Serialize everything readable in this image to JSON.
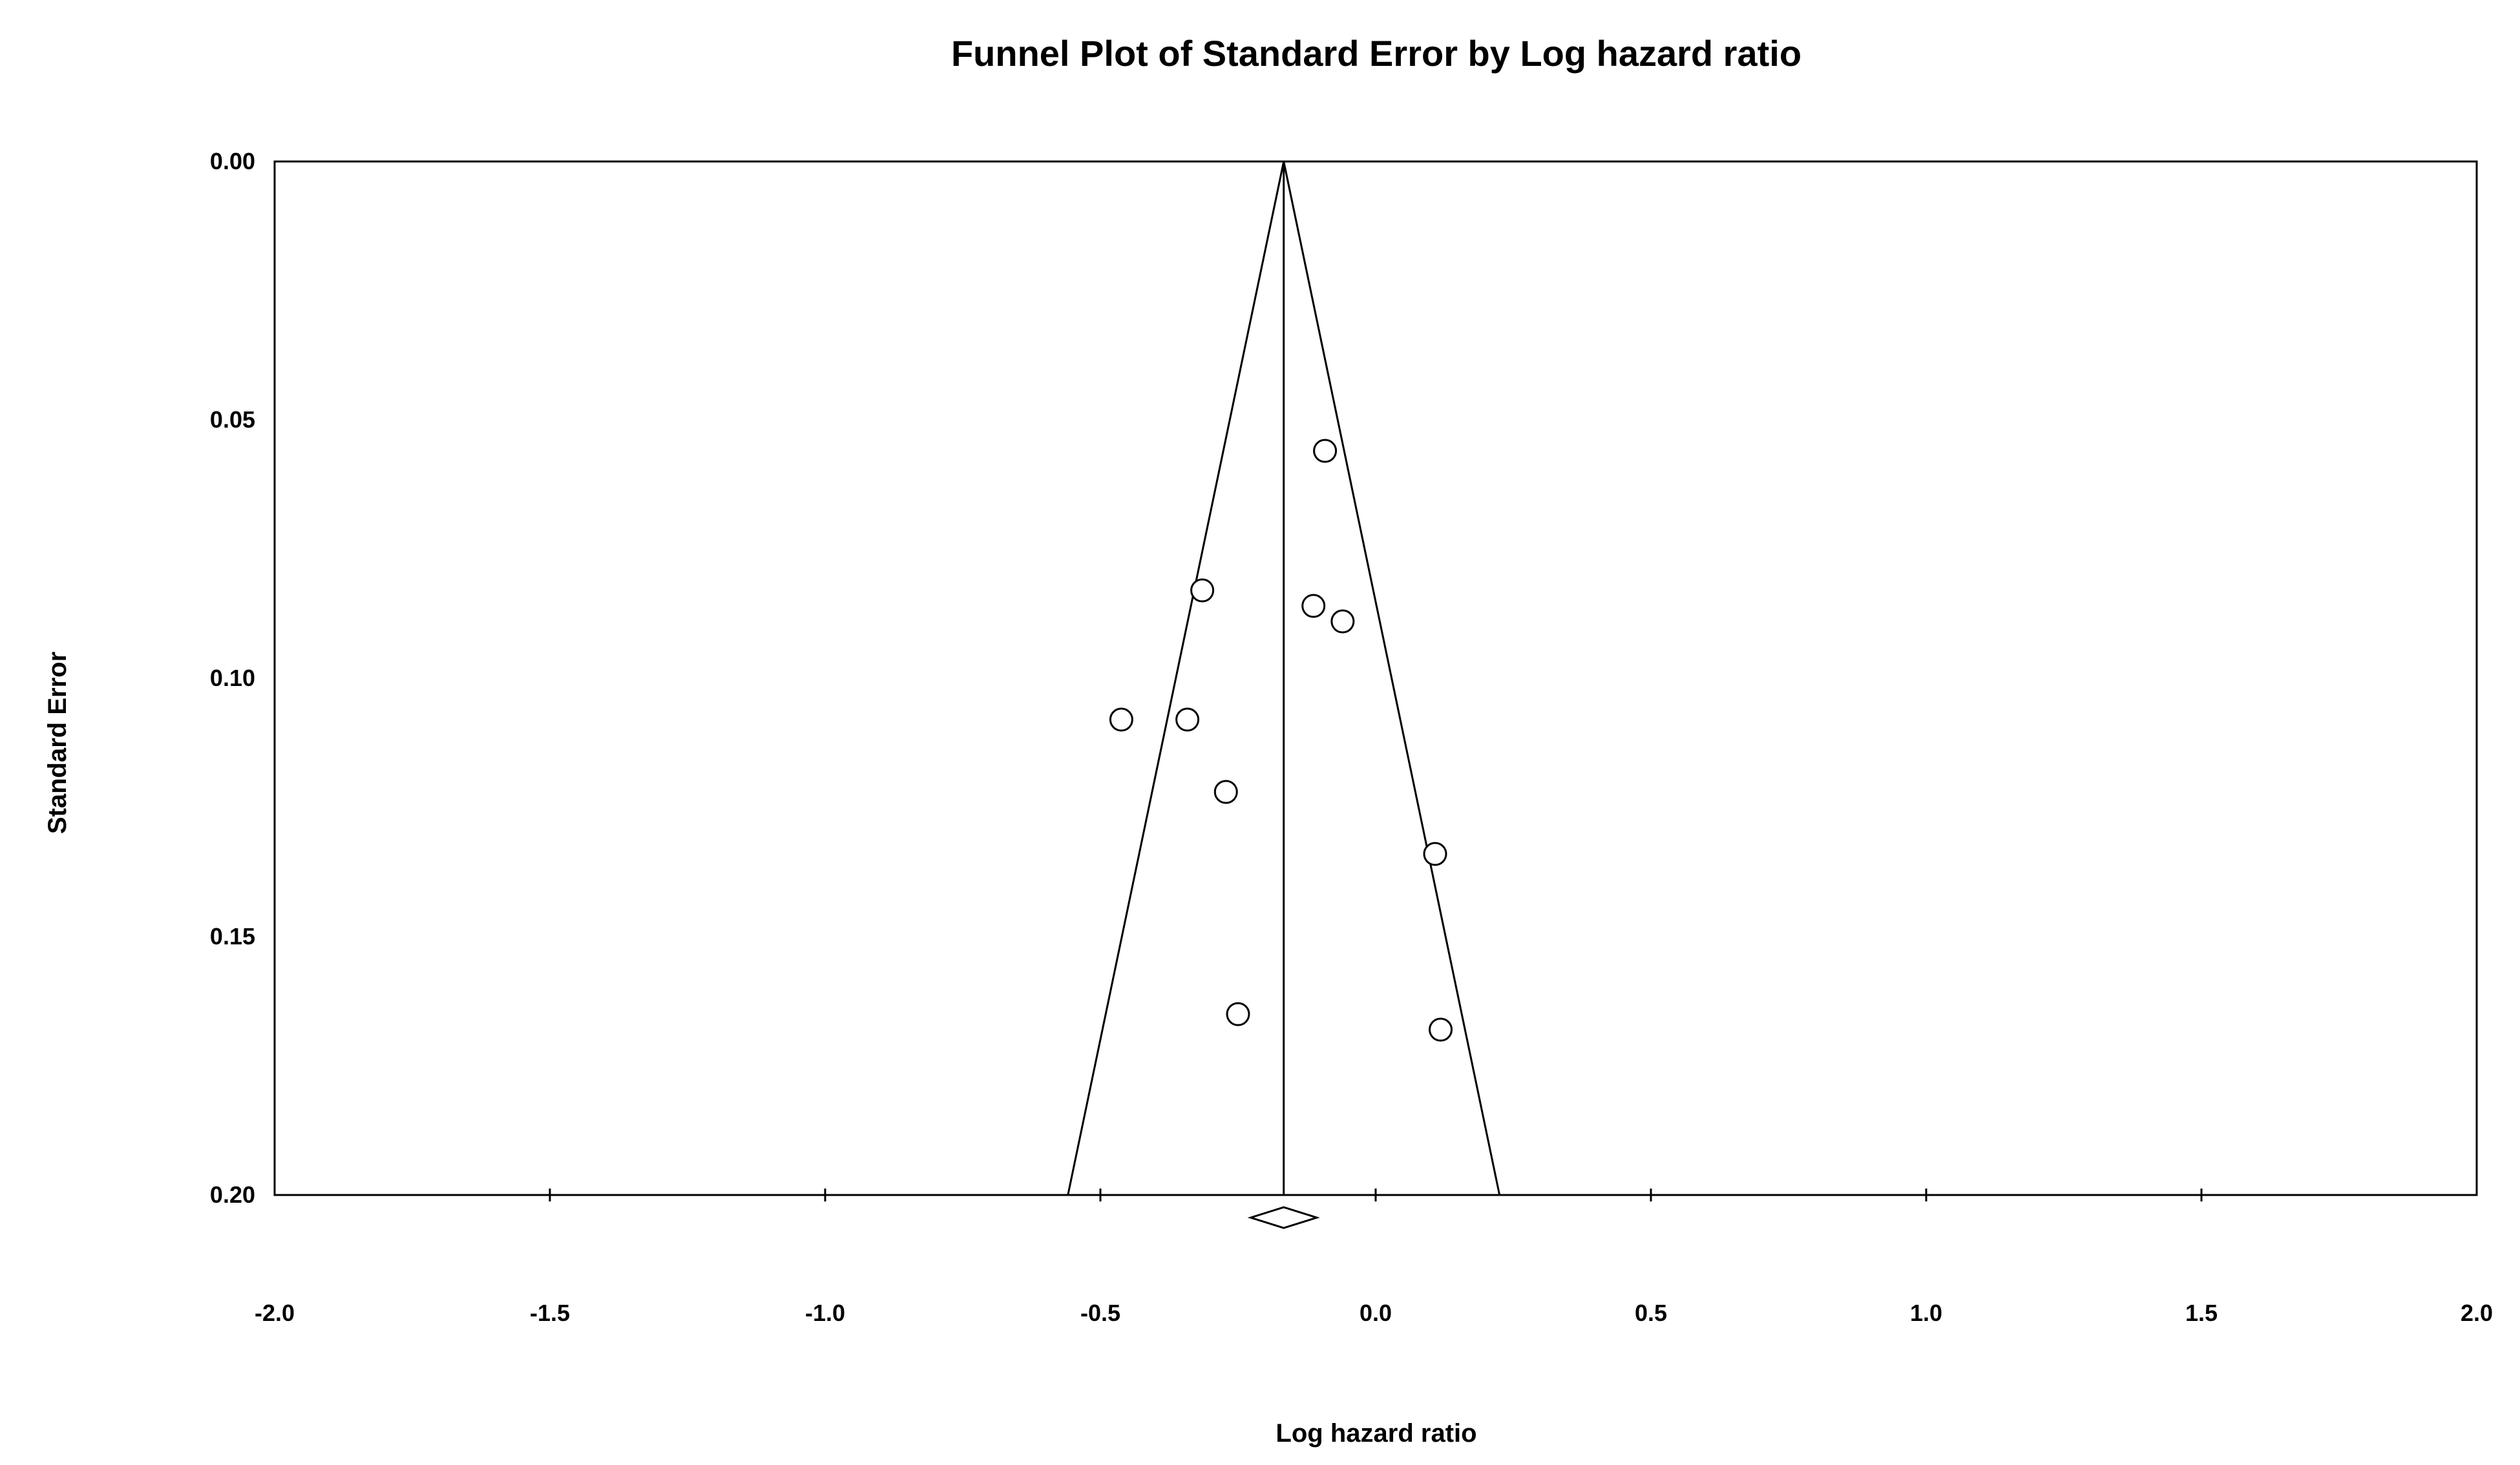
{
  "chart_data": {
    "type": "scatter",
    "title": "Funnel Plot of Standard Error by Log hazard ratio",
    "xlabel": "Log hazard ratio",
    "ylabel": "Standard Error",
    "xlim": [
      -2.0,
      2.0
    ],
    "ylim": [
      0.0,
      0.2
    ],
    "y_inverted": true,
    "x_ticks": [
      "-2.0",
      "-1.5",
      "-1.0",
      "-0.5",
      "0.0",
      "0.5",
      "1.0",
      "1.5",
      "2.0"
    ],
    "y_ticks": [
      "0.00",
      "0.05",
      "0.10",
      "0.15",
      "0.20"
    ],
    "grid": false,
    "summary_effect": -0.167,
    "funnel_limits_at_se_0_2": [
      -0.559,
      0.225
    ],
    "points": [
      {
        "x": -0.092,
        "y": 0.056
      },
      {
        "x": -0.315,
        "y": 0.083
      },
      {
        "x": -0.113,
        "y": 0.086
      },
      {
        "x": -0.06,
        "y": 0.089
      },
      {
        "x": -0.462,
        "y": 0.108
      },
      {
        "x": -0.342,
        "y": 0.108
      },
      {
        "x": -0.272,
        "y": 0.122
      },
      {
        "x": 0.108,
        "y": 0.134
      },
      {
        "x": -0.25,
        "y": 0.165
      },
      {
        "x": 0.118,
        "y": 0.168
      }
    ],
    "summary_diamond": {
      "center": -0.167,
      "lower": -0.227,
      "upper": -0.107
    }
  }
}
